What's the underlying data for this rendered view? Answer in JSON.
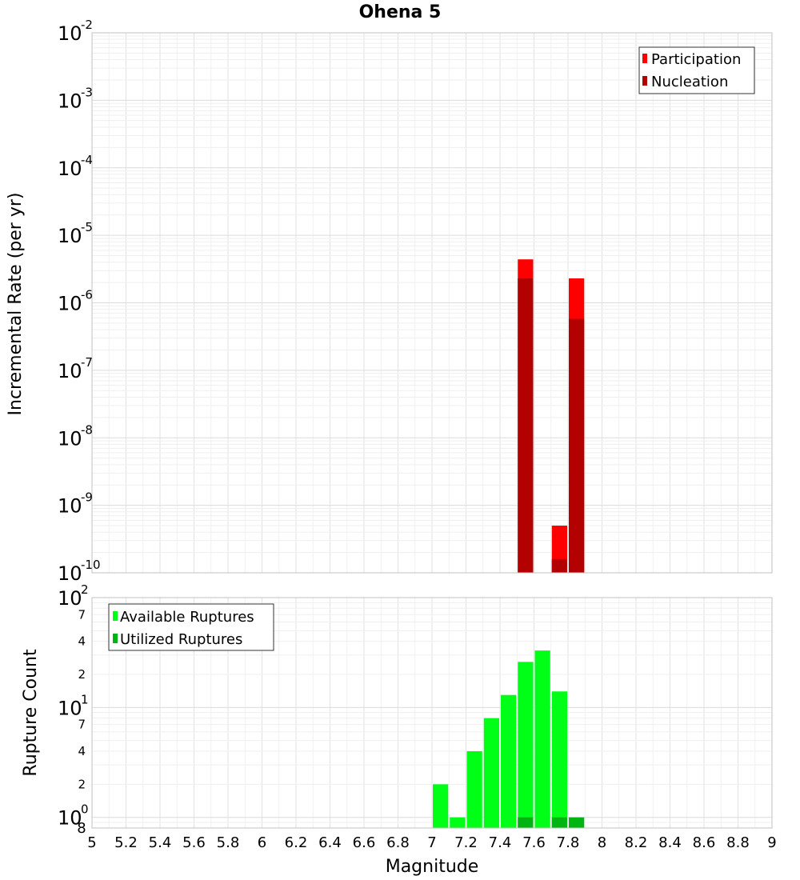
{
  "chart_data": [
    {
      "type": "bar",
      "title": "Ohena 5",
      "xlabel": "",
      "ylabel": "Incremental Rate (per yr)",
      "yscale": "log",
      "ylim_exp": [
        -10,
        -2
      ],
      "xlim": [
        5,
        9
      ],
      "grid": true,
      "legend_position": "top-right",
      "y_ticks": [
        {
          "base": "10",
          "exp": "-10"
        },
        {
          "base": "10",
          "exp": "-9"
        },
        {
          "base": "10",
          "exp": "-8"
        },
        {
          "base": "10",
          "exp": "-7"
        },
        {
          "base": "10",
          "exp": "-6"
        },
        {
          "base": "10",
          "exp": "-5"
        },
        {
          "base": "10",
          "exp": "-4"
        },
        {
          "base": "10",
          "exp": "-3"
        },
        {
          "base": "10",
          "exp": "-2"
        }
      ],
      "series": [
        {
          "name": "Participation",
          "color": "#ff0000",
          "points": [
            {
              "x": 7.55,
              "y": 4.4e-06
            },
            {
              "x": 7.75,
              "y": 5e-10
            },
            {
              "x": 7.85,
              "y": 2.3e-06
            }
          ]
        },
        {
          "name": "Nucleation",
          "color": "#b30000",
          "points": [
            {
              "x": 7.55,
              "y": 2.3e-06
            },
            {
              "x": 7.75,
              "y": 1.6e-10
            },
            {
              "x": 7.85,
              "y": 5.8e-07
            }
          ]
        }
      ]
    },
    {
      "type": "bar",
      "title": "",
      "xlabel": "Magnitude",
      "ylabel": "Rupture Count",
      "yscale": "log",
      "ylim": [
        0.8,
        100
      ],
      "xlim": [
        5,
        9
      ],
      "grid": true,
      "legend_position": "top-left",
      "x_ticks": [
        "5",
        "5.2",
        "5.4",
        "5.6",
        "5.8",
        "6",
        "6.2",
        "6.4",
        "6.6",
        "6.8",
        "7",
        "7.2",
        "7.4",
        "7.6",
        "7.8",
        "8",
        "8.2",
        "8.4",
        "8.6",
        "8.8",
        "9"
      ],
      "y_major_ticks": [
        {
          "value": 1,
          "base": "10",
          "exp": "0"
        },
        {
          "value": 10,
          "base": "10",
          "exp": "1"
        },
        {
          "value": 100,
          "base": "10",
          "exp": "2"
        }
      ],
      "y_minor_ticks": [
        {
          "value": 2,
          "label": "2"
        },
        {
          "value": 4,
          "label": "4"
        },
        {
          "value": 7,
          "label": "7"
        },
        {
          "value": 20,
          "label": "2"
        },
        {
          "value": 40,
          "label": "4"
        },
        {
          "value": 70,
          "label": "7"
        }
      ],
      "y_bottom_label": "8",
      "series": [
        {
          "name": "Available Ruptures",
          "color": "#00ff17",
          "points": [
            {
              "x": 7.05,
              "y": 2
            },
            {
              "x": 7.15,
              "y": 1
            },
            {
              "x": 7.25,
              "y": 4
            },
            {
              "x": 7.35,
              "y": 8
            },
            {
              "x": 7.45,
              "y": 13
            },
            {
              "x": 7.55,
              "y": 26
            },
            {
              "x": 7.65,
              "y": 33
            },
            {
              "x": 7.75,
              "y": 14
            }
          ]
        },
        {
          "name": "Utilized Ruptures",
          "color": "#00b512",
          "points": [
            {
              "x": 7.55,
              "y": 1
            },
            {
              "x": 7.75,
              "y": 1
            },
            {
              "x": 7.85,
              "y": 1
            }
          ]
        }
      ]
    }
  ]
}
